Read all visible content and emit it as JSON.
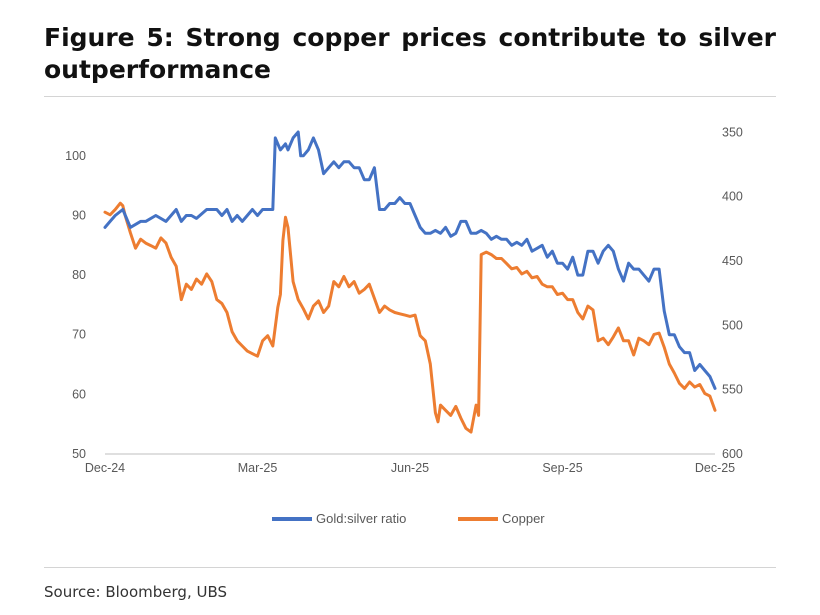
{
  "figure": {
    "title": "Figure 5: Strong copper prices contribute to silver outperformance",
    "source": "Source: Bloomberg, UBS"
  },
  "chart_data": {
    "type": "line",
    "title": "Figure 5: Strong copper prices contribute to silver outperformance",
    "x_tick_labels": [
      "Dec-24",
      "Mar-25",
      "Jun-25",
      "Sep-25",
      "Dec-25"
    ],
    "xlim": [
      0,
      12
    ],
    "x_tick_values": [
      0,
      3,
      6,
      9,
      12
    ],
    "left_axis": {
      "ylim": [
        50,
        105
      ],
      "ticks": [
        50,
        60,
        70,
        80,
        90,
        100
      ]
    },
    "right_axis": {
      "ylim": [
        600,
        345
      ],
      "ticks": [
        350,
        400,
        450,
        500,
        550,
        600
      ],
      "inverted": true
    },
    "legend_position": "bottom-center",
    "colors": {
      "gold_silver": "#4472c4",
      "copper": "#ed7d31"
    },
    "series": [
      {
        "name": "Gold:silver ratio",
        "axis": "left",
        "color": "#4472c4",
        "x": [
          0,
          0.1,
          0.2,
          0.35,
          0.5,
          0.6,
          0.7,
          0.8,
          1.0,
          1.2,
          1.4,
          1.5,
          1.6,
          1.7,
          1.8,
          2.0,
          2.2,
          2.3,
          2.4,
          2.5,
          2.6,
          2.7,
          2.8,
          2.9,
          3.0,
          3.1,
          3.2,
          3.3,
          3.35,
          3.45,
          3.55,
          3.6,
          3.7,
          3.8,
          3.85,
          3.9,
          4.0,
          4.1,
          4.2,
          4.3,
          4.4,
          4.5,
          4.6,
          4.7,
          4.8,
          4.9,
          5.0,
          5.1,
          5.2,
          5.3,
          5.4,
          5.5,
          5.6,
          5.7,
          5.8,
          5.9,
          6.0,
          6.1,
          6.2,
          6.3,
          6.4,
          6.5,
          6.6,
          6.7,
          6.8,
          6.9,
          7.0,
          7.1,
          7.2,
          7.3,
          7.4,
          7.5,
          7.6,
          7.7,
          7.8,
          7.9,
          8.0,
          8.1,
          8.2,
          8.3,
          8.4,
          8.5,
          8.6,
          8.7,
          8.8,
          8.9,
          9.0,
          9.1,
          9.2,
          9.3,
          9.4,
          9.5,
          9.6,
          9.7,
          9.8,
          9.9,
          10.0,
          10.1,
          10.2,
          10.3,
          10.4,
          10.5,
          10.6,
          10.7,
          10.8,
          10.9,
          11.0,
          11.1,
          11.2,
          11.3,
          11.4,
          11.5,
          11.6,
          11.7,
          11.8,
          11.9,
          12.0
        ],
        "values": [
          88,
          89,
          90,
          91,
          88,
          88.5,
          89,
          89,
          90,
          89,
          91,
          89,
          90,
          90,
          89.5,
          91,
          91,
          90,
          91,
          89,
          90,
          89,
          90,
          91,
          90,
          91,
          91,
          91,
          103,
          101,
          102,
          101,
          103,
          104,
          100,
          100,
          101,
          103,
          101,
          97,
          98,
          99,
          98,
          99,
          99,
          98,
          98,
          96,
          96,
          98,
          91,
          91,
          92,
          92,
          93,
          92,
          92,
          90,
          88,
          87,
          87,
          87.5,
          87,
          88,
          86.5,
          87,
          89,
          89,
          87,
          87,
          87.5,
          87,
          86,
          86.5,
          86,
          86,
          85,
          85.5,
          85,
          86,
          84,
          84.5,
          85,
          83,
          84,
          82,
          82,
          81,
          83,
          80,
          80,
          84,
          84,
          82,
          84,
          85,
          84,
          81,
          79,
          82,
          81,
          81,
          80,
          79,
          81,
          81,
          74,
          70,
          70,
          68,
          67,
          67,
          64,
          65,
          64,
          63,
          61
        ]
      },
      {
        "name": "Copper",
        "axis": "right",
        "color": "#ed7d31",
        "x": [
          0,
          0.1,
          0.2,
          0.3,
          0.35,
          0.4,
          0.5,
          0.6,
          0.7,
          0.8,
          0.9,
          1.0,
          1.1,
          1.2,
          1.3,
          1.4,
          1.5,
          1.6,
          1.7,
          1.8,
          1.9,
          2.0,
          2.1,
          2.2,
          2.3,
          2.4,
          2.5,
          2.6,
          2.7,
          2.8,
          2.9,
          3.0,
          3.1,
          3.2,
          3.3,
          3.4,
          3.45,
          3.5,
          3.55,
          3.6,
          3.7,
          3.8,
          3.9,
          4.0,
          4.1,
          4.2,
          4.3,
          4.4,
          4.5,
          4.6,
          4.7,
          4.8,
          4.9,
          5.0,
          5.1,
          5.2,
          5.3,
          5.4,
          5.5,
          5.6,
          5.7,
          5.8,
          5.9,
          6.0,
          6.1,
          6.2,
          6.3,
          6.4,
          6.5,
          6.55,
          6.6,
          6.7,
          6.8,
          6.9,
          7.0,
          7.1,
          7.2,
          7.3,
          7.35,
          7.4,
          7.5,
          7.6,
          7.7,
          7.8,
          7.9,
          8.0,
          8.1,
          8.2,
          8.3,
          8.4,
          8.5,
          8.6,
          8.7,
          8.8,
          8.9,
          9.0,
          9.1,
          9.2,
          9.3,
          9.4,
          9.5,
          9.6,
          9.7,
          9.8,
          9.9,
          10.0,
          10.1,
          10.2,
          10.3,
          10.4,
          10.5,
          10.6,
          10.7,
          10.8,
          10.9,
          11.0,
          11.1,
          11.2,
          11.3,
          11.4,
          11.5,
          11.6,
          11.7,
          11.8,
          11.9,
          12.0
        ],
        "values": [
          412,
          414,
          410,
          405,
          407,
          415,
          428,
          440,
          433,
          436,
          438,
          440,
          432,
          436,
          447,
          454,
          480,
          468,
          472,
          464,
          468,
          460,
          466,
          480,
          483,
          490,
          505,
          512,
          516,
          520,
          522,
          524,
          512,
          508,
          516,
          486,
          476,
          434,
          416,
          424,
          466,
          480,
          487,
          495,
          485,
          481,
          490,
          485,
          466,
          470,
          462,
          470,
          466,
          475,
          472,
          468,
          479,
          490,
          485,
          488,
          490,
          491,
          492,
          493,
          492,
          508,
          512,
          530,
          568,
          575,
          562,
          566,
          570,
          563,
          572,
          580,
          583,
          562,
          570,
          445,
          443,
          445,
          448,
          448,
          452,
          456,
          455,
          460,
          458,
          463,
          462,
          468,
          470,
          470,
          476,
          475,
          480,
          480,
          490,
          495,
          485,
          488,
          512,
          510,
          515,
          509,
          502,
          512,
          512,
          523,
          510,
          512,
          515,
          507,
          506,
          517,
          530,
          537,
          545,
          549,
          544,
          548,
          546,
          553,
          555,
          566
        ]
      }
    ]
  }
}
